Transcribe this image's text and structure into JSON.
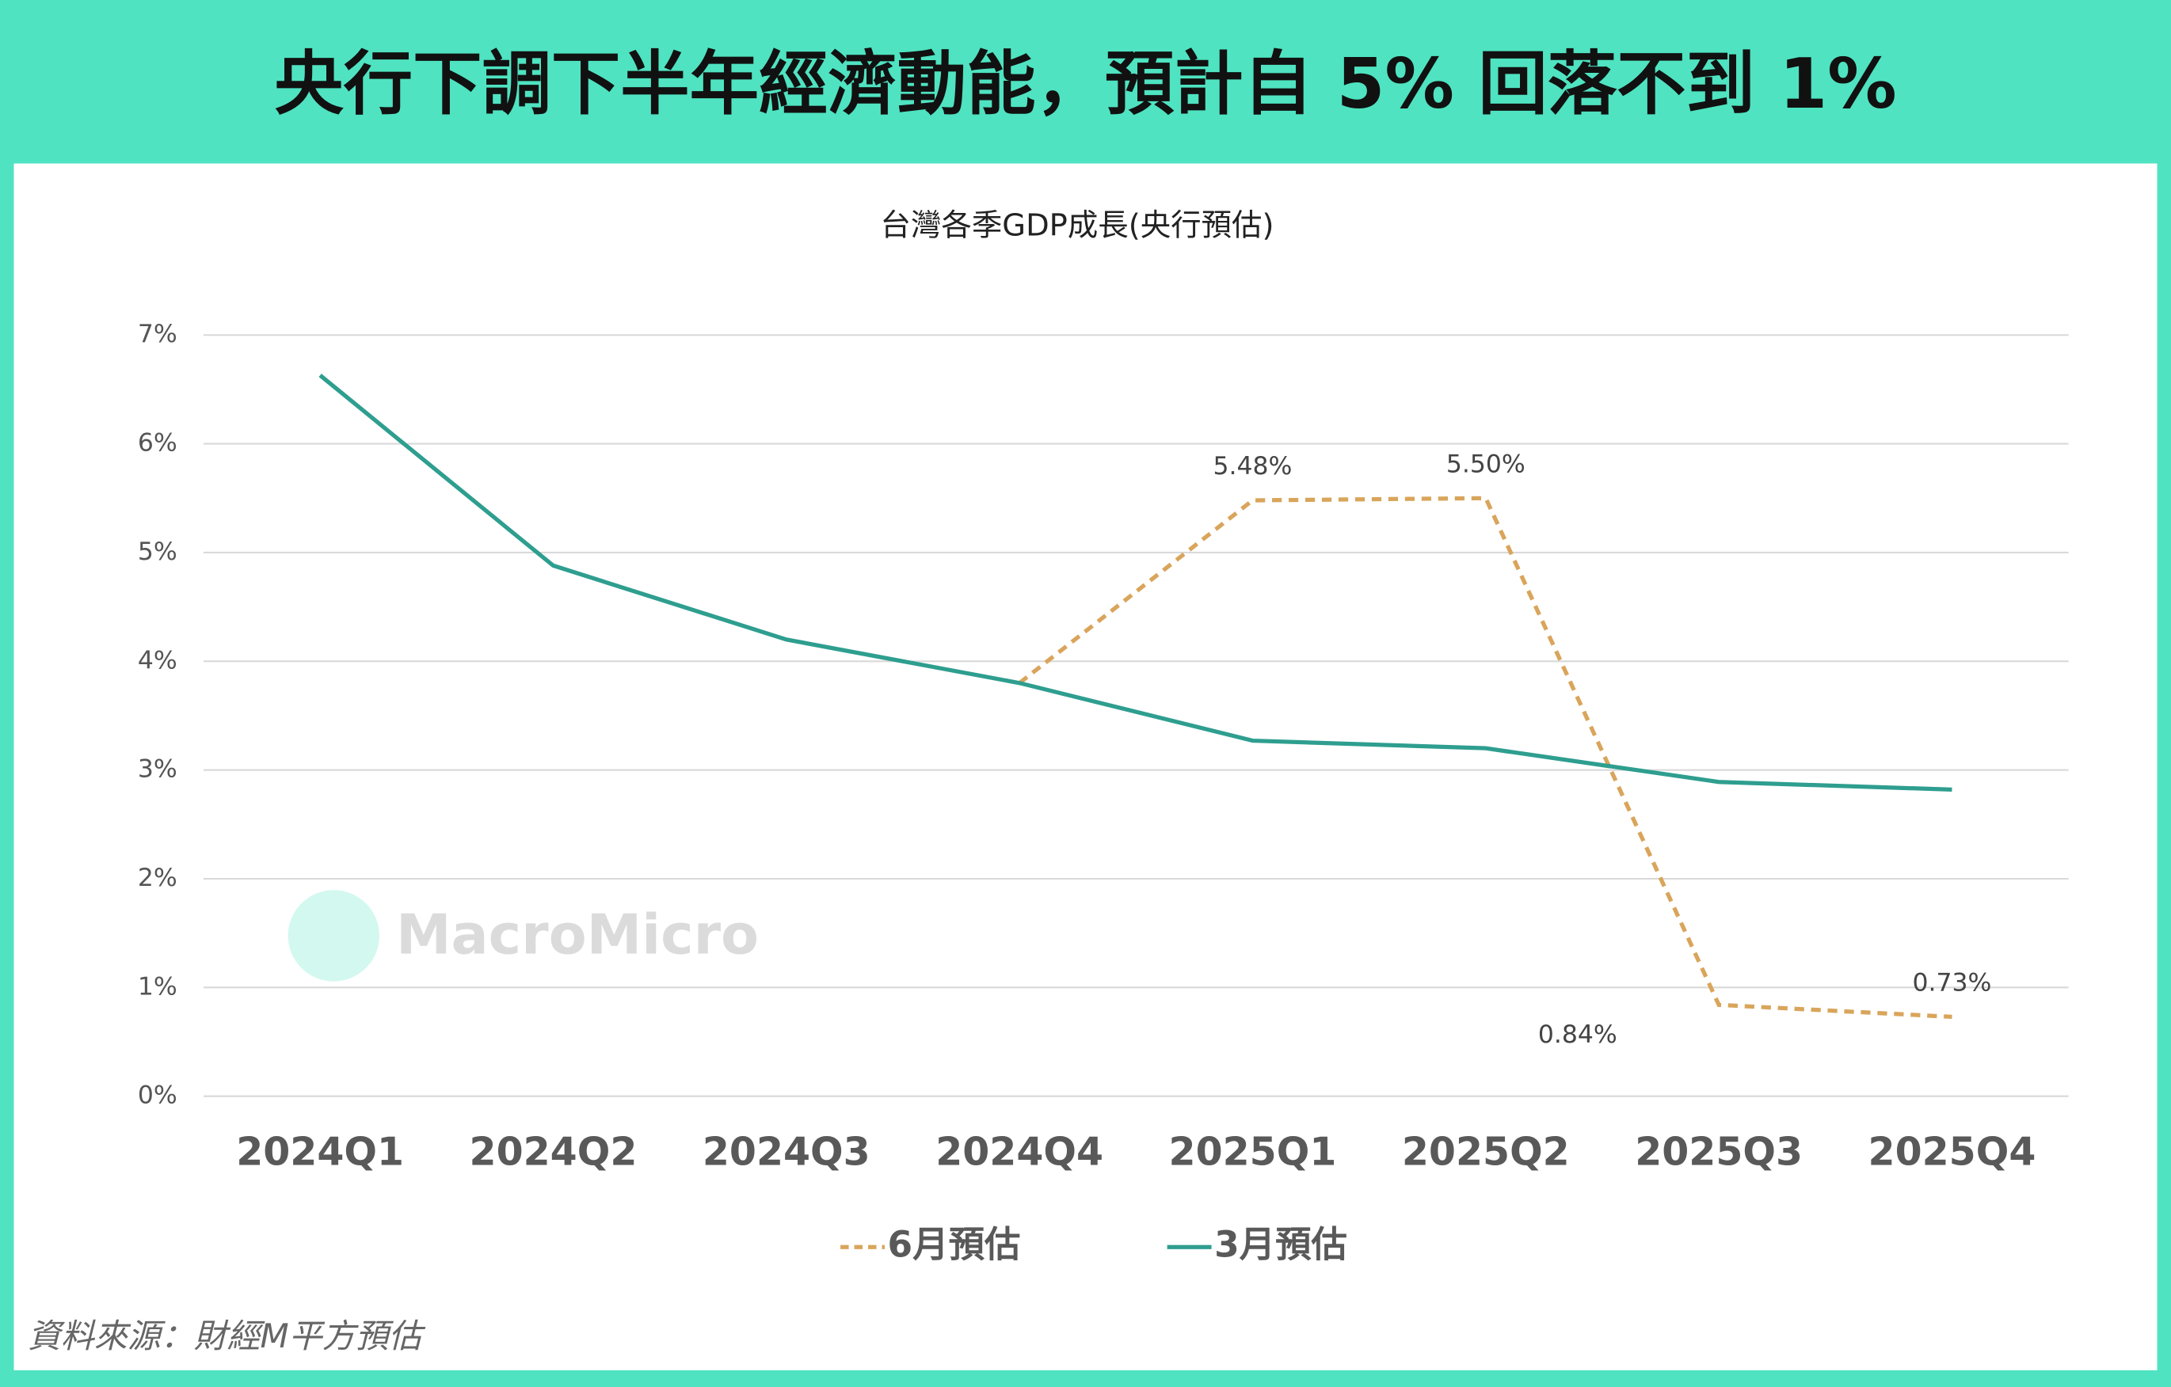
{
  "header": {
    "title": "央行下調下半年經濟動能，預計自 5% 回落不到 1%"
  },
  "chart_data": {
    "type": "line",
    "title": "台灣各季GDP成長(央行預估)",
    "categories": [
      "2024Q1",
      "2024Q2",
      "2024Q3",
      "2024Q4",
      "2025Q1",
      "2025Q2",
      "2025Q3",
      "2025Q4"
    ],
    "series": [
      {
        "name": "6月預估",
        "color": "#d9a55b",
        "dashed": true,
        "values": [
          null,
          null,
          null,
          3.8,
          5.48,
          5.5,
          0.84,
          0.73
        ],
        "value_labels": [
          null,
          null,
          null,
          null,
          "5.48%",
          "5.50%",
          "0.84%",
          "0.73%"
        ]
      },
      {
        "name": "3月預估",
        "color": "#2e9e8f",
        "dashed": false,
        "values": [
          6.63,
          4.88,
          4.2,
          3.8,
          3.27,
          3.2,
          2.89,
          2.82
        ]
      }
    ],
    "ylim": [
      0,
      7
    ],
    "yticks": [
      {
        "value": 0,
        "label": "0%"
      },
      {
        "value": 1,
        "label": "1%"
      },
      {
        "value": 2,
        "label": "2%"
      },
      {
        "value": 3,
        "label": "3%"
      },
      {
        "value": 4,
        "label": "4%"
      },
      {
        "value": 5,
        "label": "5%"
      },
      {
        "value": 6,
        "label": "6%"
      },
      {
        "value": 7,
        "label": "7%"
      }
    ],
    "grid": true,
    "legend": "bottom",
    "watermark": "MacroMicro"
  },
  "footer": {
    "source": "資料來源：財經M平方預估"
  }
}
